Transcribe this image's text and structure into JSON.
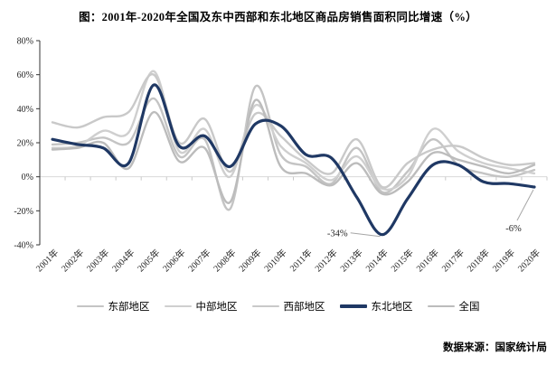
{
  "title": "图：2001年-2020年全国及东中西部和东北地区商品房销售面积同比增速（%）",
  "source": "数据来源：国家统计局",
  "colors": {
    "northeast_line": "#1f3864",
    "gray_line": "#c6c6c6",
    "y_axis": "#333333",
    "zero_line": "#d9d9d9",
    "x_tick": "#c9c9c9",
    "leader_line": "#a6a6a6",
    "text": "#262626"
  },
  "chart_data": {
    "type": "line",
    "title": "图：2001年-2020年全国及东中西部和东北地区商品房销售面积同比增速（%）",
    "xlabel": "",
    "ylabel": "",
    "grid": "zero-line-only",
    "legend_position": "bottom",
    "ylim": [
      -40,
      80
    ],
    "yticks": [
      {
        "value": 80,
        "label": "80%"
      },
      {
        "value": 60,
        "label": "60%"
      },
      {
        "value": 40,
        "label": "40%"
      },
      {
        "value": 20,
        "label": "20%"
      },
      {
        "value": 0,
        "label": "0%"
      },
      {
        "value": -20,
        "label": "-20%"
      },
      {
        "value": -40,
        "label": "-40%"
      }
    ],
    "categories": [
      "2001年",
      "2002年",
      "2003年",
      "2004年",
      "2005年",
      "2006年",
      "2007年",
      "2008年",
      "2009年",
      "2010年",
      "2011年",
      "2012年",
      "2013年",
      "2014年",
      "2015年",
      "2016年",
      "2017年",
      "2018年",
      "2019年",
      "2020年"
    ],
    "series": [
      {
        "name": "东部地区",
        "key": "east",
        "color": "#c4c4c4",
        "width": 2.4,
        "values": [
          19,
          20,
          23,
          20,
          46,
          12,
          22,
          -19,
          53,
          13,
          6,
          -4,
          17,
          -9,
          3,
          22,
          7,
          2,
          0,
          4
        ]
      },
      {
        "name": "中部地区",
        "key": "central",
        "color": "#cfcfcf",
        "width": 2.4,
        "values": [
          17,
          18,
          27,
          26,
          62,
          15,
          28,
          0,
          42,
          18,
          8,
          -2,
          12,
          -7,
          0,
          28,
          15,
          8,
          5,
          2
        ]
      },
      {
        "name": "西部地区",
        "key": "west",
        "color": "#c9c9c9",
        "width": 2.4,
        "values": [
          32,
          29,
          35,
          38,
          60,
          20,
          34,
          3,
          37,
          24,
          10,
          2,
          22,
          -6,
          8,
          16,
          18,
          11,
          7,
          8
        ]
      },
      {
        "name": "东北地区",
        "key": "northeast",
        "color": "#1f3864",
        "width": 3.2,
        "values": [
          22,
          19,
          17,
          8,
          54,
          18,
          24,
          6,
          31,
          30,
          13,
          11,
          -12,
          -34,
          -13,
          7,
          7,
          -3,
          -4,
          -6
        ]
      },
      {
        "name": "全国",
        "key": "national",
        "color": "#bcbcbc",
        "width": 2.4,
        "values": [
          16,
          17,
          20,
          5,
          38,
          9,
          17,
          -15,
          45,
          6,
          2,
          -5,
          8,
          -10,
          -3,
          14,
          10,
          6,
          2,
          7
        ]
      }
    ],
    "annotations": [
      {
        "label": "-34%",
        "series": "东北地区",
        "year": "2014年",
        "year_index": 13,
        "placement": "left"
      },
      {
        "label": "-6%",
        "series": "东北地区",
        "year": "2020年",
        "year_index": 19,
        "placement": "below"
      }
    ]
  }
}
